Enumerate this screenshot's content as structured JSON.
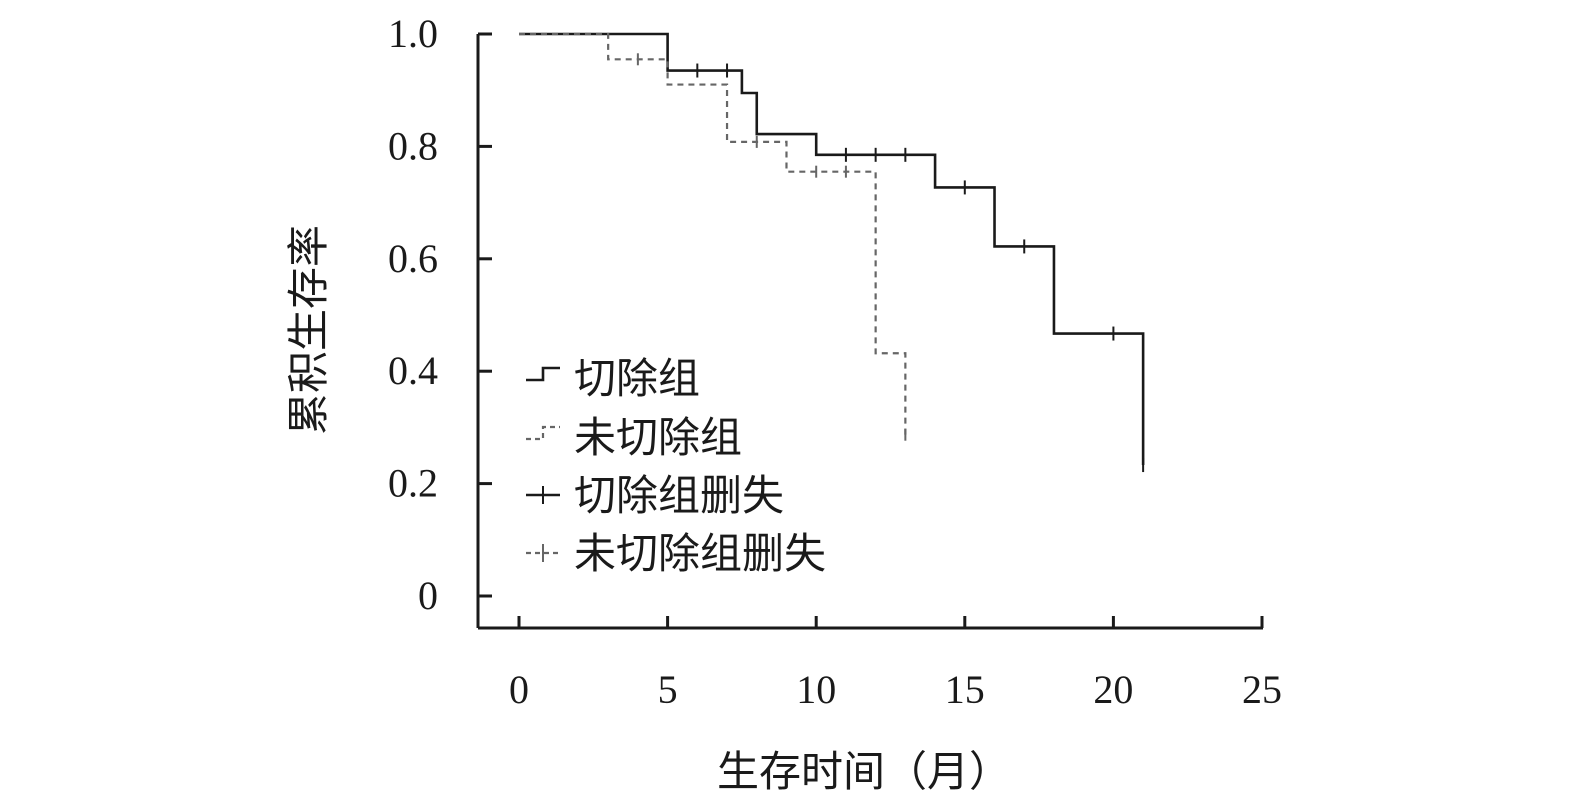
{
  "chart_data": {
    "type": "line",
    "subtype": "kaplan-meier-step",
    "title": "",
    "xlabel": "生存时间（月）",
    "ylabel": "累积生存率",
    "xlim": [
      0,
      25
    ],
    "ylim": [
      0,
      1.0
    ],
    "xticks": [
      0,
      5,
      10,
      15,
      20,
      25
    ],
    "yticks": [
      0,
      0.2,
      0.4,
      0.6,
      0.8,
      1.0
    ],
    "ytick_labels": [
      "0",
      "0.2",
      "0.4",
      "0.6",
      "0.8",
      "1.0"
    ],
    "grid": false,
    "legend_position": "left",
    "legend": [
      {
        "label": "切除组",
        "marker": "step-solid"
      },
      {
        "label": "未切除组",
        "marker": "step-dashed"
      },
      {
        "label": "切除组删失",
        "marker": "plus-solid"
      },
      {
        "label": "未切除组删失",
        "marker": "plus-dashed"
      }
    ],
    "series": [
      {
        "name": "切除组",
        "style": "solid",
        "color": "#1a1a1a",
        "steps": [
          {
            "x": 0,
            "y": 1.0
          },
          {
            "x": 5,
            "y": 0.935
          },
          {
            "x": 7.5,
            "y": 0.895
          },
          {
            "x": 8,
            "y": 0.822
          },
          {
            "x": 10,
            "y": 0.785
          },
          {
            "x": 14,
            "y": 0.727
          },
          {
            "x": 16,
            "y": 0.622
          },
          {
            "x": 18,
            "y": 0.467
          },
          {
            "x": 21,
            "y": 0.233
          }
        ],
        "censored": [
          {
            "x": 6,
            "y": 0.935
          },
          {
            "x": 7,
            "y": 0.935
          },
          {
            "x": 11,
            "y": 0.785
          },
          {
            "x": 12,
            "y": 0.785
          },
          {
            "x": 13,
            "y": 0.785
          },
          {
            "x": 15,
            "y": 0.727
          },
          {
            "x": 17,
            "y": 0.622
          },
          {
            "x": 20,
            "y": 0.467
          },
          {
            "x": 21,
            "y": 0.233
          }
        ]
      },
      {
        "name": "未切除组",
        "style": "dashed",
        "color": "#666666",
        "steps": [
          {
            "x": 0,
            "y": 1.0
          },
          {
            "x": 3,
            "y": 0.955
          },
          {
            "x": 5,
            "y": 0.91
          },
          {
            "x": 7,
            "y": 0.808
          },
          {
            "x": 9,
            "y": 0.755
          },
          {
            "x": 12,
            "y": 0.432
          },
          {
            "x": 13,
            "y": 0.287
          }
        ],
        "censored": [
          {
            "x": 4,
            "y": 0.955
          },
          {
            "x": 8,
            "y": 0.808
          },
          {
            "x": 10,
            "y": 0.755
          },
          {
            "x": 11,
            "y": 0.755
          },
          {
            "x": 13,
            "y": 0.287
          }
        ]
      }
    ]
  }
}
